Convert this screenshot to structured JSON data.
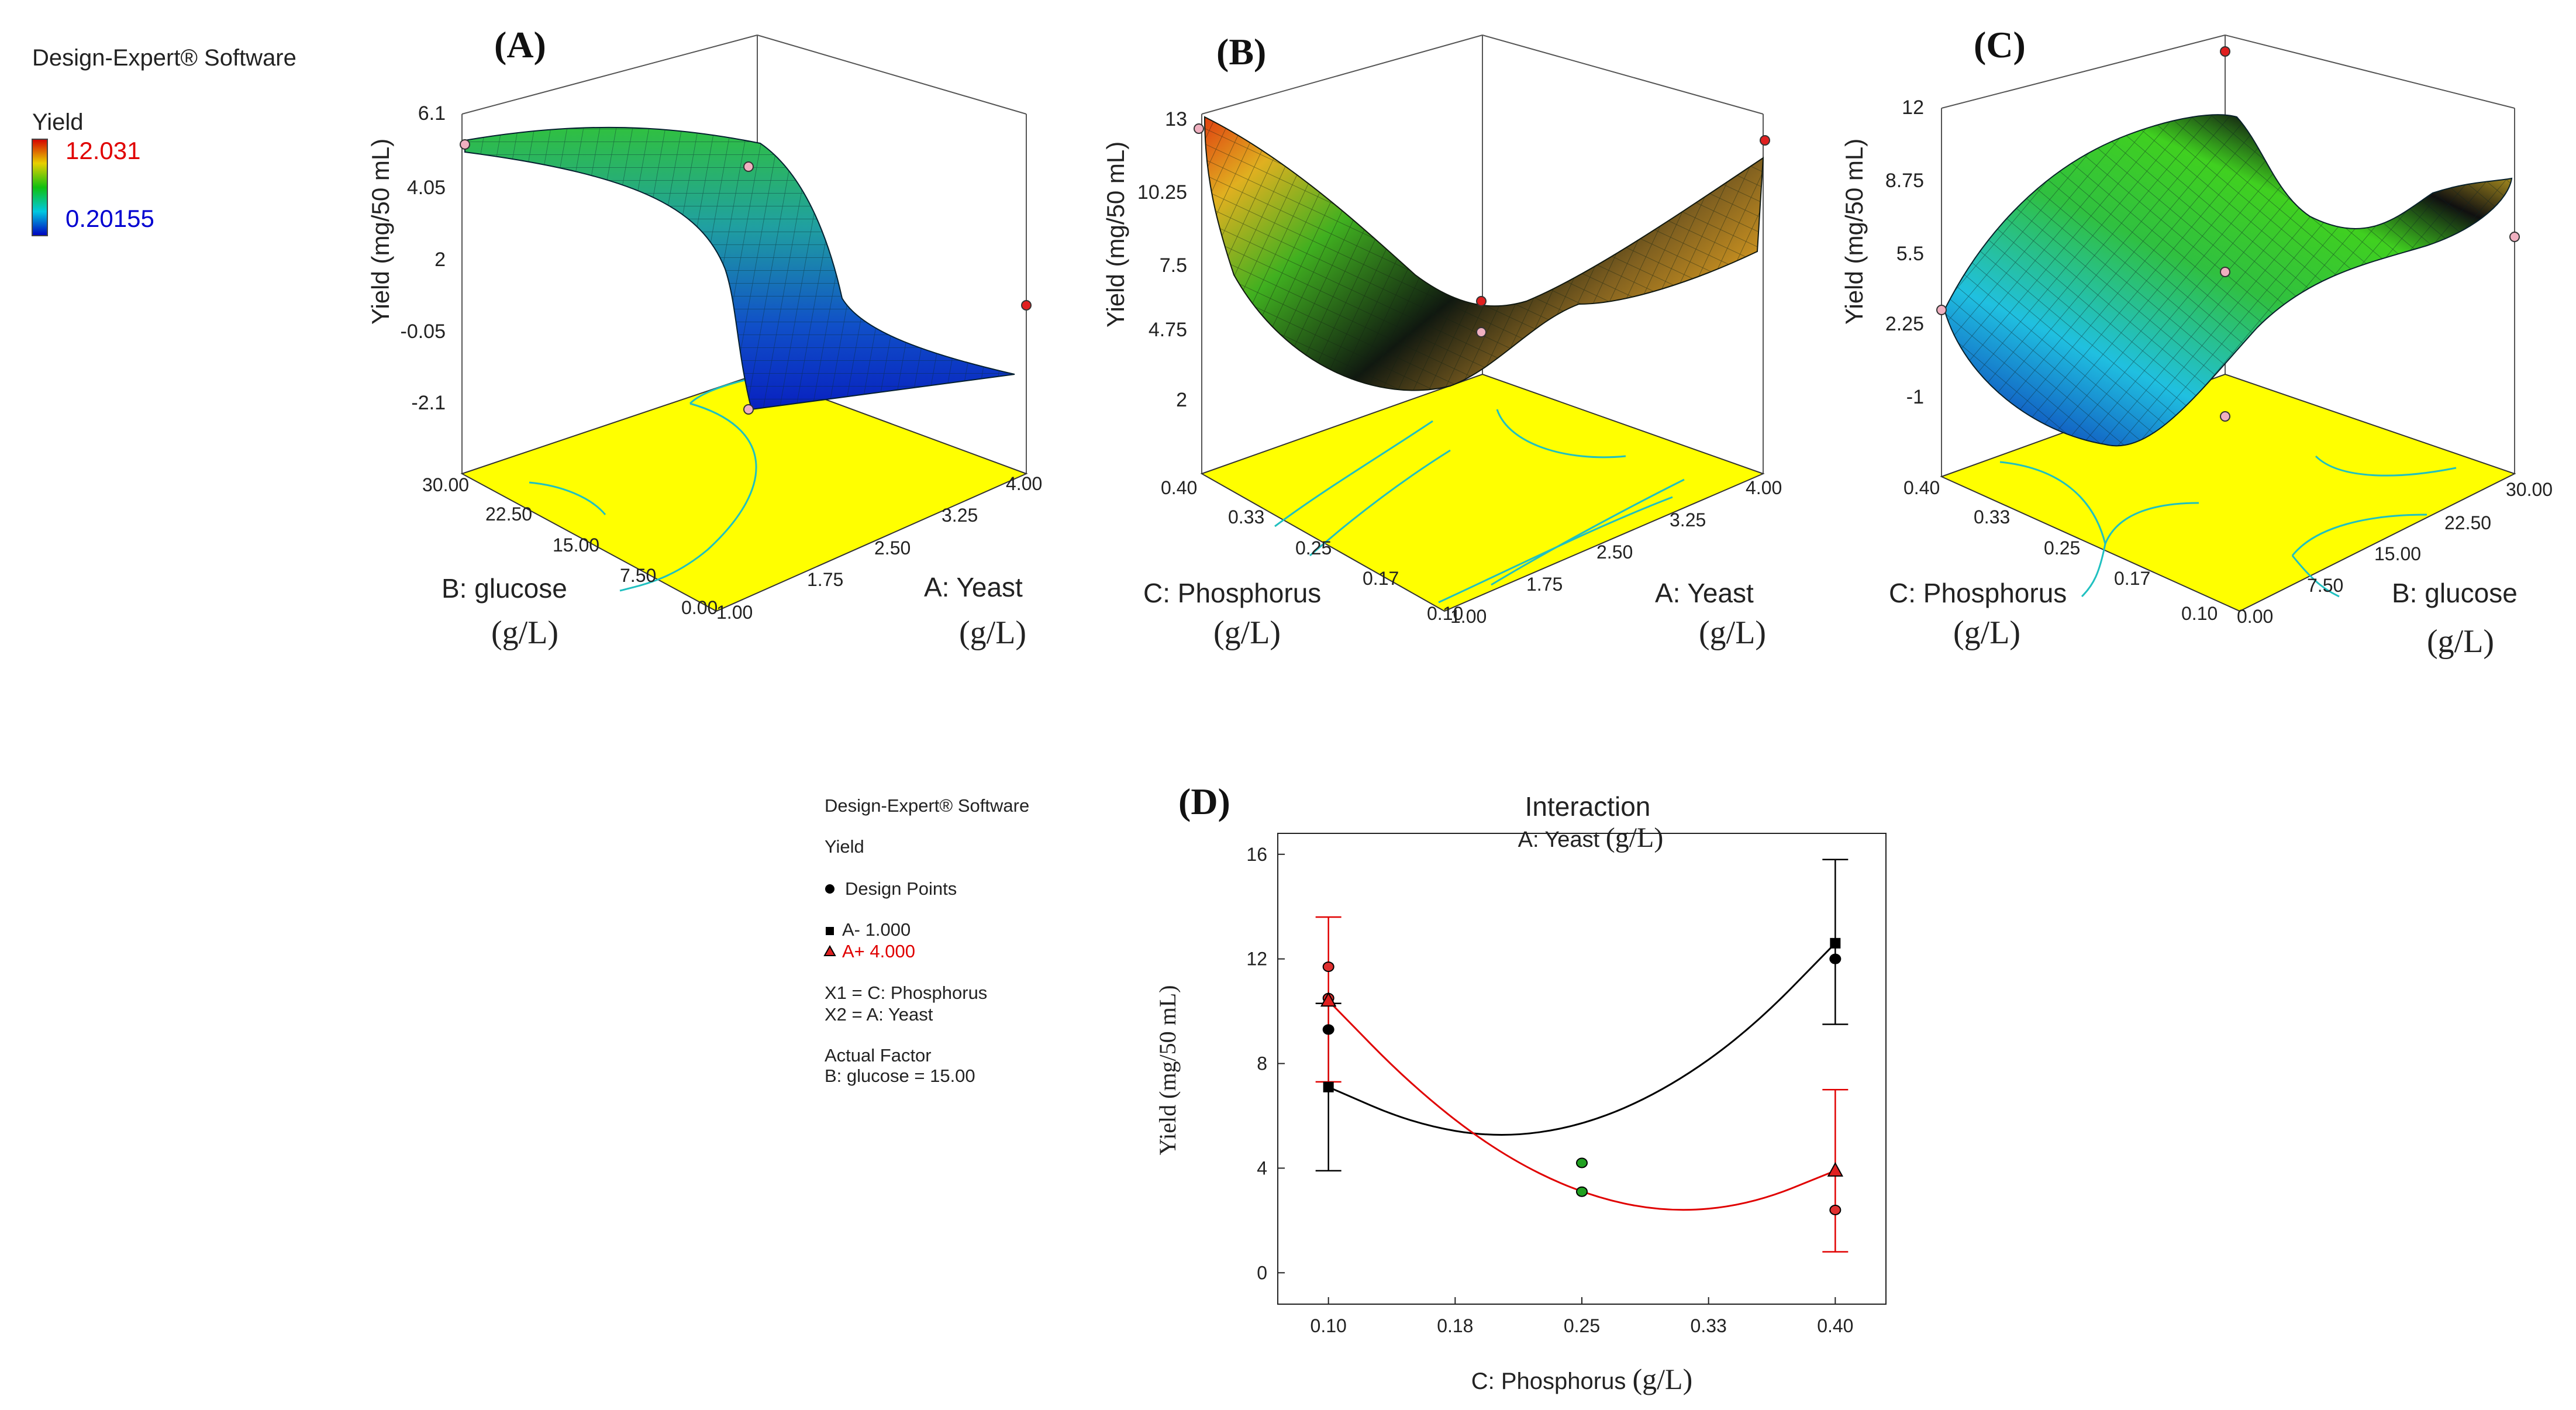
{
  "software_label": "Design-Expert® Software",
  "legend": {
    "response": "Yield",
    "max": "12.031",
    "min": "0.20155",
    "colors": {
      "high": "#e00000",
      "low": "#0000d0"
    }
  },
  "chart_data": [
    {
      "type": "surface",
      "panel_label": "(A)",
      "z_label": "Yield (mg/50 mL)",
      "z_ticks": [
        "6.1",
        "4.05",
        "2",
        "-0.05",
        "-2.1"
      ],
      "x_label": "A: Yeast",
      "x_unit": "(g/L)",
      "x_ticks": [
        "1.00",
        "1.75",
        "2.50",
        "3.25",
        "4.00"
      ],
      "y_label": "B: glucose",
      "y_unit": "(g/L)",
      "y_ticks": [
        "0.00",
        "7.50",
        "15.00",
        "22.50",
        "30.00"
      ]
    },
    {
      "type": "surface",
      "panel_label": "(B)",
      "z_label": "Yield (mg/50 mL)",
      "z_ticks": [
        "13",
        "10.25",
        "7.5",
        "4.75",
        "2"
      ],
      "x_label": "A: Yeast",
      "x_unit": "(g/L)",
      "x_ticks": [
        "1.00",
        "1.75",
        "2.50",
        "3.25",
        "4.00"
      ],
      "y_label": "C: Phosphorus",
      "y_unit": "(g/L)",
      "y_ticks": [
        "0.10",
        "0.17",
        "0.25",
        "0.33",
        "0.40"
      ]
    },
    {
      "type": "surface",
      "panel_label": "(C)",
      "z_label": "Yield (mg/50 mL)",
      "z_ticks": [
        "12",
        "8.75",
        "5.5",
        "2.25",
        "-1"
      ],
      "x_label": "B: glucose",
      "x_unit": "(g/L)",
      "x_ticks": [
        "0.00",
        "7.50",
        "15.00",
        "22.50",
        "30.00"
      ],
      "y_label": "C: Phosphorus",
      "y_unit": "(g/L)",
      "y_ticks": [
        "0.10",
        "0.17",
        "0.25",
        "0.33",
        "0.40"
      ]
    },
    {
      "type": "line",
      "panel_label": "(D)",
      "title": "Interaction",
      "subtitle": "A: Yeast",
      "subtitle_unit": "(g/L)",
      "xlabel": "C: Phosphorus",
      "xlabel_unit": "(g/L)",
      "ylabel": "Yield (mg/50 mL)",
      "xlim": [
        0.07,
        0.43
      ],
      "ylim": [
        -1.2,
        16.8
      ],
      "x_ticks": [
        0.1,
        0.175,
        0.25,
        0.325,
        0.4
      ],
      "x_tick_labels": [
        "0.10",
        "0.18",
        "0.25",
        "0.33",
        "0.40"
      ],
      "y_ticks": [
        0,
        4,
        8,
        12,
        16
      ],
      "y_tick_labels": [
        "0",
        "4",
        "8",
        "12",
        "16"
      ],
      "series": [
        {
          "name": "A- 1.000",
          "color": "#000000",
          "marker": "square",
          "x": [
            0.1,
            0.4
          ],
          "y": [
            7.1,
            12.6
          ],
          "error_low": [
            3.9,
            9.5
          ],
          "error_high": [
            10.3,
            15.8
          ],
          "curve": [
            [
              0.1,
              7.1
            ],
            [
              0.15,
              5.7
            ],
            [
              0.2,
              5.15
            ],
            [
              0.25,
              5.6
            ],
            [
              0.3,
              7.0
            ],
            [
              0.35,
              9.3
            ],
            [
              0.4,
              12.6
            ]
          ]
        },
        {
          "name": "A+ 4.000",
          "color": "#e00000",
          "marker": "triangle",
          "x": [
            0.1,
            0.4
          ],
          "y": [
            10.4,
            3.9
          ],
          "error_low": [
            7.3,
            0.8
          ],
          "error_high": [
            13.6,
            7.0
          ],
          "curve": [
            [
              0.1,
              10.4
            ],
            [
              0.15,
              7.1
            ],
            [
              0.2,
              4.6
            ],
            [
              0.25,
              3.0
            ],
            [
              0.3,
              2.3
            ],
            [
              0.35,
              2.6
            ],
            [
              0.4,
              3.9
            ]
          ]
        }
      ],
      "design_points": [
        {
          "x": 0.1,
          "y": 11.7,
          "color": "#e03030"
        },
        {
          "x": 0.1,
          "y": 10.5,
          "color": "#e03030"
        },
        {
          "x": 0.1,
          "y": 9.3,
          "color": "#000000"
        },
        {
          "x": 0.4,
          "y": 12.0,
          "color": "#000000"
        },
        {
          "x": 0.4,
          "y": 2.4,
          "color": "#e03030"
        },
        {
          "x": 0.25,
          "y": 4.2,
          "color": "#20a020"
        },
        {
          "x": 0.25,
          "y": 3.1,
          "color": "#20a020"
        }
      ]
    }
  ],
  "legend_d": {
    "software": "Design-Expert® Software",
    "response": "Yield",
    "design_points": "Design Points",
    "series_low": "A- 1.000",
    "series_high": "A+ 4.000",
    "x1": "X1 = C: Phosphorus",
    "x2": "X2 = A: Yeast",
    "actual_factor_title": "Actual Factor",
    "actual_factor": "B: glucose = 15.00"
  }
}
